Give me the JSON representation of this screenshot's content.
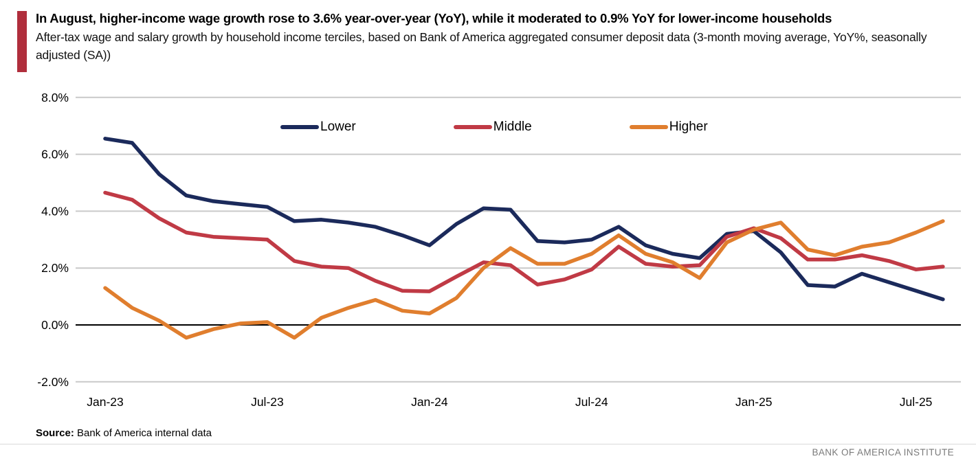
{
  "header": {
    "title": "In August, higher-income wage growth rose to 3.6% year-over-year (YoY), while it moderated to 0.9% YoY for lower-income households",
    "subtitle": "After-tax wage and salary growth by household income terciles, based on Bank of America aggregated consumer deposit data (3-month moving average, YoY%, seasonally adjusted (SA))"
  },
  "accent_color": "#B02E3C",
  "chart_data": {
    "type": "line",
    "title": "",
    "xlabel": "",
    "ylabel": "YoY% (3-month moving average, SA)",
    "grid": true,
    "legend_position": "top-center",
    "ylim": [
      -2.6,
      8.6
    ],
    "x": [
      "Jan-23",
      "Feb-23",
      "Mar-23",
      "Apr-23",
      "May-23",
      "Jun-23",
      "Jul-23",
      "Aug-23",
      "Sep-23",
      "Oct-23",
      "Nov-23",
      "Dec-23",
      "Jan-24",
      "Feb-24",
      "Mar-24",
      "Apr-24",
      "May-24",
      "Jun-24",
      "Jul-24",
      "Aug-24",
      "Sep-24",
      "Oct-24",
      "Nov-24",
      "Dec-24",
      "Jan-25",
      "Feb-25",
      "Mar-25",
      "Apr-25",
      "May-25",
      "Jun-25",
      "Jul-25",
      "Aug-25"
    ],
    "x_tick_indices": [
      0,
      6,
      12,
      18,
      24,
      30
    ],
    "x_tick_labels": [
      "Jan-23",
      "Jul-23",
      "Jan-24",
      "Jul-24",
      "Jan-25",
      "Jul-25"
    ],
    "y_tick_values": [
      8,
      6,
      4,
      2,
      0,
      -2
    ],
    "y_tick_labels": [
      "8.0%",
      "6.0%",
      "4.0%",
      "2.0%",
      "0.0%",
      "-2.0%"
    ],
    "series": [
      {
        "name": "Lower",
        "color": "#1B2A5B",
        "values": [
          6.55,
          6.4,
          5.3,
          4.55,
          4.35,
          4.25,
          4.15,
          3.65,
          3.7,
          3.6,
          3.45,
          3.15,
          2.8,
          3.55,
          4.1,
          4.05,
          2.95,
          2.9,
          3.0,
          3.45,
          2.8,
          2.5,
          2.35,
          3.2,
          3.3,
          2.55,
          1.4,
          1.35,
          1.8,
          1.5,
          1.2,
          0.9
        ]
      },
      {
        "name": "Middle",
        "color": "#C03A45",
        "values": [
          4.65,
          4.4,
          3.75,
          3.25,
          3.1,
          3.05,
          3.0,
          2.25,
          2.05,
          2.0,
          1.55,
          1.2,
          1.18,
          1.7,
          2.2,
          2.1,
          1.42,
          1.6,
          1.95,
          2.75,
          2.15,
          2.05,
          2.1,
          3.1,
          3.4,
          3.05,
          2.3,
          2.3,
          2.45,
          2.25,
          1.95,
          2.05
        ]
      },
      {
        "name": "Higher",
        "color": "#E07E2E",
        "values": [
          1.3,
          0.6,
          0.15,
          -0.45,
          -0.15,
          0.05,
          0.1,
          -0.45,
          0.25,
          0.6,
          0.88,
          0.5,
          0.4,
          0.95,
          2.0,
          2.7,
          2.15,
          2.15,
          2.5,
          3.15,
          2.5,
          2.2,
          1.65,
          2.9,
          3.35,
          3.6,
          2.65,
          2.45,
          2.75,
          2.9,
          3.25,
          3.65
        ]
      }
    ]
  },
  "source": {
    "label": "Source:",
    "text": " Bank of America internal data"
  },
  "footer": {
    "text": "BANK OF AMERICA INSTITUTE"
  }
}
